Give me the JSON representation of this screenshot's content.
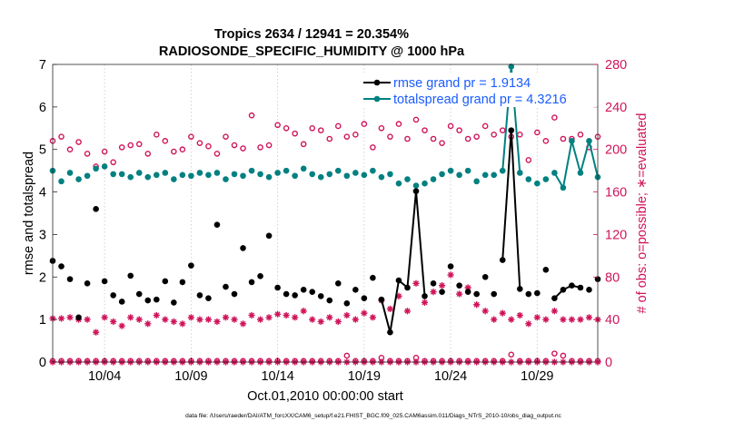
{
  "chart_data": {
    "type": "scatter",
    "title_line1": "Tropics 2634 / 12941 = 20.354%",
    "title_line2": "RADIOSONDE_SPECIFIC_HUMIDITY @ 1000 hPa",
    "xlabel": "Oct.01,2010 00:00:00 start",
    "ylabel_left": "rmse and totalspread",
    "ylabel_right": "# of obs: o=possible; ∗=evaluated",
    "footer": "data file: /Users/raeder/DAI/ATM_forcXX/CAM6_setup/f.e21.FHIST_BGC.f09_025.CAM6assim.011/Diags_NTrS_2010-10/obs_diag_output.nc",
    "xlim": [
      1,
      32.5
    ],
    "ylim_left": [
      0,
      7
    ],
    "ylim_right": [
      0,
      280
    ],
    "x_ticks": [
      4,
      9,
      14,
      19,
      24,
      29
    ],
    "x_tick_labels": [
      "10/04",
      "10/09",
      "10/14",
      "10/19",
      "10/24",
      "10/29"
    ],
    "y_ticks_left": [
      0,
      1,
      2,
      3,
      4,
      5,
      6,
      7
    ],
    "y_tick_labels_left": [
      "0",
      "1",
      "2",
      "3",
      "4",
      "5",
      "6",
      "7"
    ],
    "y_ticks_right": [
      0,
      40,
      80,
      120,
      160,
      200,
      240,
      280
    ],
    "y_tick_labels_right": [
      "0",
      "40",
      "80",
      "120",
      "160",
      "200",
      "240",
      "280"
    ],
    "colors": {
      "rmse": "#000000",
      "spread": "#008080",
      "obs": "#d0145a",
      "left_axis": "#000000",
      "right_axis": "#d0145a",
      "legend_text": "#1a5cff"
    },
    "series": [
      {
        "name": "rmse grand pr = 1.9134",
        "axis": "left",
        "x": [
          1.0,
          1.5,
          2.0,
          2.5,
          3.0,
          3.5,
          4.0,
          4.5,
          5.0,
          5.5,
          6.0,
          6.5,
          7.0,
          7.5,
          8.0,
          8.5,
          9.0,
          9.5,
          10.0,
          10.5,
          11.0,
          11.5,
          12.0,
          12.5,
          13.0,
          13.5,
          14.0,
          14.5,
          15.0,
          15.5,
          16.0,
          16.5,
          17.0,
          17.5,
          18.0,
          18.5,
          19.0,
          19.5,
          20.0,
          20.5,
          21.0,
          21.5,
          22.0,
          22.5,
          23.0,
          23.5,
          24.0,
          24.5,
          25.0,
          25.5,
          26.0,
          26.5,
          27.0,
          27.5,
          28.0,
          28.5,
          29.0,
          29.5,
          30.0,
          30.5,
          31.0,
          31.5,
          32.0,
          32.5
        ],
        "values": [
          2.38,
          2.25,
          1.95,
          1.05,
          1.85,
          3.6,
          1.9,
          1.57,
          1.42,
          2.03,
          1.6,
          1.45,
          1.47,
          1.9,
          1.4,
          1.88,
          2.27,
          1.57,
          1.5,
          3.23,
          1.77,
          1.6,
          2.68,
          1.88,
          2.02,
          2.97,
          1.75,
          1.6,
          1.57,
          1.7,
          1.65,
          1.55,
          1.45,
          1.85,
          1.38,
          1.7,
          1.5,
          1.98,
          1.47,
          0.7,
          1.92,
          1.75,
          4.02,
          1.55,
          1.85,
          1.65,
          2.25,
          1.8,
          1.65,
          1.6,
          2.0,
          1.6,
          2.4,
          5.45,
          1.72,
          1.6,
          1.62,
          2.17,
          1.5,
          1.7,
          1.8,
          1.75,
          1.7,
          1.95
        ],
        "connected_pairs": [
          [
            38,
            39
          ],
          [
            39,
            40
          ],
          [
            40,
            41
          ],
          [
            41,
            42
          ],
          [
            42,
            43
          ],
          [
            52,
            53
          ],
          [
            53,
            54
          ],
          [
            58,
            59
          ],
          [
            59,
            60
          ],
          [
            60,
            61
          ]
        ]
      },
      {
        "name": "totalspread grand pr = 4.3216",
        "axis": "left",
        "x": [
          1.0,
          1.5,
          2.0,
          2.5,
          3.0,
          3.5,
          4.0,
          4.5,
          5.0,
          5.5,
          6.0,
          6.5,
          7.0,
          7.5,
          8.0,
          8.5,
          9.0,
          9.5,
          10.0,
          10.5,
          11.0,
          11.5,
          12.0,
          12.5,
          13.0,
          13.5,
          14.0,
          14.5,
          15.0,
          15.5,
          16.0,
          16.5,
          17.0,
          17.5,
          18.0,
          18.5,
          19.0,
          19.5,
          20.0,
          20.5,
          21.0,
          21.5,
          22.0,
          22.5,
          23.0,
          23.5,
          24.0,
          24.5,
          25.0,
          25.5,
          26.0,
          26.5,
          27.0,
          27.5,
          28.0,
          28.5,
          29.0,
          29.5,
          30.0,
          30.5,
          31.0,
          31.5,
          32.0,
          32.5
        ],
        "values": [
          4.5,
          4.25,
          4.45,
          4.3,
          4.38,
          4.55,
          4.6,
          4.42,
          4.42,
          4.35,
          4.45,
          4.35,
          4.4,
          4.45,
          4.3,
          4.4,
          4.38,
          4.45,
          4.4,
          4.45,
          4.3,
          4.42,
          4.38,
          4.5,
          4.42,
          4.35,
          4.45,
          4.5,
          4.38,
          4.55,
          4.42,
          4.35,
          4.42,
          4.5,
          4.38,
          4.45,
          4.4,
          4.5,
          4.35,
          4.42,
          4.2,
          4.3,
          4.15,
          4.2,
          4.3,
          4.42,
          4.5,
          4.4,
          4.5,
          4.25,
          4.4,
          4.4,
          4.5,
          6.95,
          4.45,
          4.3,
          4.2,
          4.3,
          4.45,
          4.1,
          5.2,
          4.45,
          5.2,
          4.35
        ],
        "connected_pairs": [
          [
            52,
            53
          ],
          [
            53,
            54
          ],
          [
            58,
            59
          ],
          [
            59,
            60
          ],
          [
            60,
            61
          ],
          [
            61,
            62
          ],
          [
            62,
            63
          ]
        ]
      },
      {
        "name": "obs possible",
        "axis": "right",
        "marker": "circle",
        "x": [
          1.0,
          1.5,
          2.0,
          2.5,
          3.0,
          3.5,
          4.0,
          4.5,
          5.0,
          5.5,
          6.0,
          6.5,
          7.0,
          7.5,
          8.0,
          8.5,
          9.0,
          9.5,
          10.0,
          10.5,
          11.0,
          11.5,
          12.0,
          12.5,
          13.0,
          13.5,
          14.0,
          14.5,
          15.0,
          15.5,
          16.0,
          16.5,
          17.0,
          17.5,
          18.0,
          18.5,
          19.0,
          19.5,
          20.0,
          20.5,
          21.0,
          21.5,
          22.0,
          22.5,
          23.0,
          23.5,
          24.0,
          24.5,
          25.0,
          25.5,
          26.0,
          26.5,
          27.0,
          27.5,
          28.0,
          28.5,
          29.0,
          29.5,
          30.0,
          30.5,
          31.0,
          31.5,
          32.0,
          32.5
        ],
        "values": [
          208,
          212,
          200,
          207,
          196,
          184,
          198,
          188,
          202,
          204,
          205,
          196,
          214,
          208,
          198,
          200,
          212,
          206,
          203,
          196,
          212,
          204,
          201,
          232,
          202,
          204,
          223,
          220,
          215,
          205,
          220,
          218,
          210,
          222,
          212,
          214,
          224,
          202,
          220,
          212,
          224,
          210,
          228,
          218,
          210,
          206,
          222,
          218,
          210,
          212,
          222,
          214,
          218,
          212,
          214,
          190,
          216,
          208,
          230,
          210,
          210,
          214,
          202,
          212
        ]
      },
      {
        "name": "obs evaluated",
        "axis": "right",
        "marker": "asterisk",
        "x": [
          1.0,
          1.5,
          2.0,
          2.5,
          3.0,
          3.5,
          4.0,
          4.5,
          5.0,
          5.5,
          6.0,
          6.5,
          7.0,
          7.5,
          8.0,
          8.5,
          9.0,
          9.5,
          10.0,
          10.5,
          11.0,
          11.5,
          12.0,
          12.5,
          13.0,
          13.5,
          14.0,
          14.5,
          15.0,
          15.5,
          16.0,
          16.5,
          17.0,
          17.5,
          18.0,
          18.5,
          19.0,
          19.5,
          20.0,
          20.5,
          21.0,
          21.5,
          22.0,
          22.5,
          23.0,
          23.5,
          24.0,
          24.5,
          25.0,
          25.5,
          26.0,
          26.5,
          27.0,
          27.5,
          28.0,
          28.5,
          29.0,
          29.5,
          30.0,
          30.5,
          31.0,
          31.5,
          32.0,
          32.5
        ],
        "values": [
          41,
          41,
          42,
          40,
          40,
          28,
          42,
          38,
          34,
          42,
          40,
          36,
          44,
          40,
          38,
          36,
          42,
          40,
          40,
          38,
          42,
          40,
          36,
          44,
          40,
          42,
          45,
          44,
          42,
          48,
          40,
          38,
          42,
          38,
          44,
          40,
          46,
          42,
          58,
          50,
          62,
          48,
          74,
          56,
          66,
          72,
          82,
          64,
          70,
          54,
          48,
          40,
          46,
          40,
          44,
          36,
          42,
          40,
          48,
          40,
          40,
          40,
          42,
          40
        ]
      },
      {
        "name": "obs baseline possible",
        "axis": "right",
        "marker": "circle",
        "x": [
          1.0,
          1.5,
          2.0,
          2.5,
          3.0,
          3.5,
          4.0,
          4.5,
          5.0,
          5.5,
          6.0,
          6.5,
          7.0,
          7.5,
          8.0,
          8.5,
          9.0,
          9.5,
          10.0,
          10.5,
          11.0,
          11.5,
          12.0,
          12.5,
          13.0,
          13.5,
          14.0,
          14.5,
          15.0,
          15.5,
          16.0,
          16.5,
          17.0,
          17.5,
          18.0,
          18.5,
          19.0,
          19.5,
          20.0,
          20.5,
          21.0,
          21.5,
          22.0,
          22.5,
          23.0,
          23.5,
          24.0,
          24.5,
          25.0,
          25.5,
          26.0,
          26.5,
          27.0,
          27.5,
          28.0,
          28.5,
          29.0,
          29.5,
          30.0,
          30.5,
          31.0,
          31.5,
          32.0,
          32.5
        ],
        "values": [
          1,
          1,
          1,
          1,
          1,
          1,
          1,
          1,
          1,
          1,
          1,
          1,
          1,
          1,
          1,
          1,
          1,
          1,
          1,
          1,
          1,
          1,
          1,
          1,
          1,
          1,
          1,
          1,
          1,
          1,
          1,
          1,
          1,
          1,
          6,
          1,
          1,
          1,
          4,
          1,
          1,
          1,
          4,
          1,
          1,
          1,
          1,
          1,
          1,
          1,
          1,
          1,
          1,
          7,
          1,
          1,
          1,
          1,
          8,
          6,
          1,
          1,
          1,
          1
        ]
      },
      {
        "name": "obs baseline evaluated",
        "axis": "right",
        "marker": "asterisk",
        "x": [
          1.0,
          1.5,
          2.0,
          2.5,
          3.0,
          3.5,
          4.0,
          4.5,
          5.0,
          5.5,
          6.0,
          6.5,
          7.0,
          7.5,
          8.0,
          8.5,
          9.0,
          9.5,
          10.0,
          10.5,
          11.0,
          11.5,
          12.0,
          12.5,
          13.0,
          13.5,
          14.0,
          14.5,
          15.0,
          15.5,
          16.0,
          16.5,
          17.0,
          17.5,
          18.0,
          18.5,
          19.0,
          19.5,
          20.0,
          20.5,
          21.0,
          21.5,
          22.0,
          22.5,
          23.0,
          23.5,
          24.0,
          24.5,
          25.0,
          25.5,
          26.0,
          26.5,
          27.0,
          27.5,
          28.0,
          28.5,
          29.0,
          29.5,
          30.0,
          30.5,
          31.0,
          31.5,
          32.0,
          32.5
        ],
        "values": [
          0,
          0,
          0,
          0,
          0,
          0,
          0,
          0,
          0,
          0,
          0,
          0,
          0,
          0,
          0,
          0,
          0,
          0,
          0,
          0,
          0,
          0,
          0,
          0,
          0,
          0,
          0,
          0,
          0,
          0,
          0,
          0,
          0,
          0,
          0,
          0,
          0,
          0,
          0,
          0,
          0,
          0,
          0,
          0,
          0,
          0,
          0,
          0,
          0,
          0,
          0,
          0,
          0,
          0,
          0,
          0,
          0,
          0,
          0,
          0,
          0,
          0,
          0,
          0
        ]
      }
    ],
    "legend": {
      "placement": "top-right",
      "entries": [
        "rmse grand pr = 1.9134",
        "totalspread grand pr = 4.3216"
      ]
    }
  }
}
